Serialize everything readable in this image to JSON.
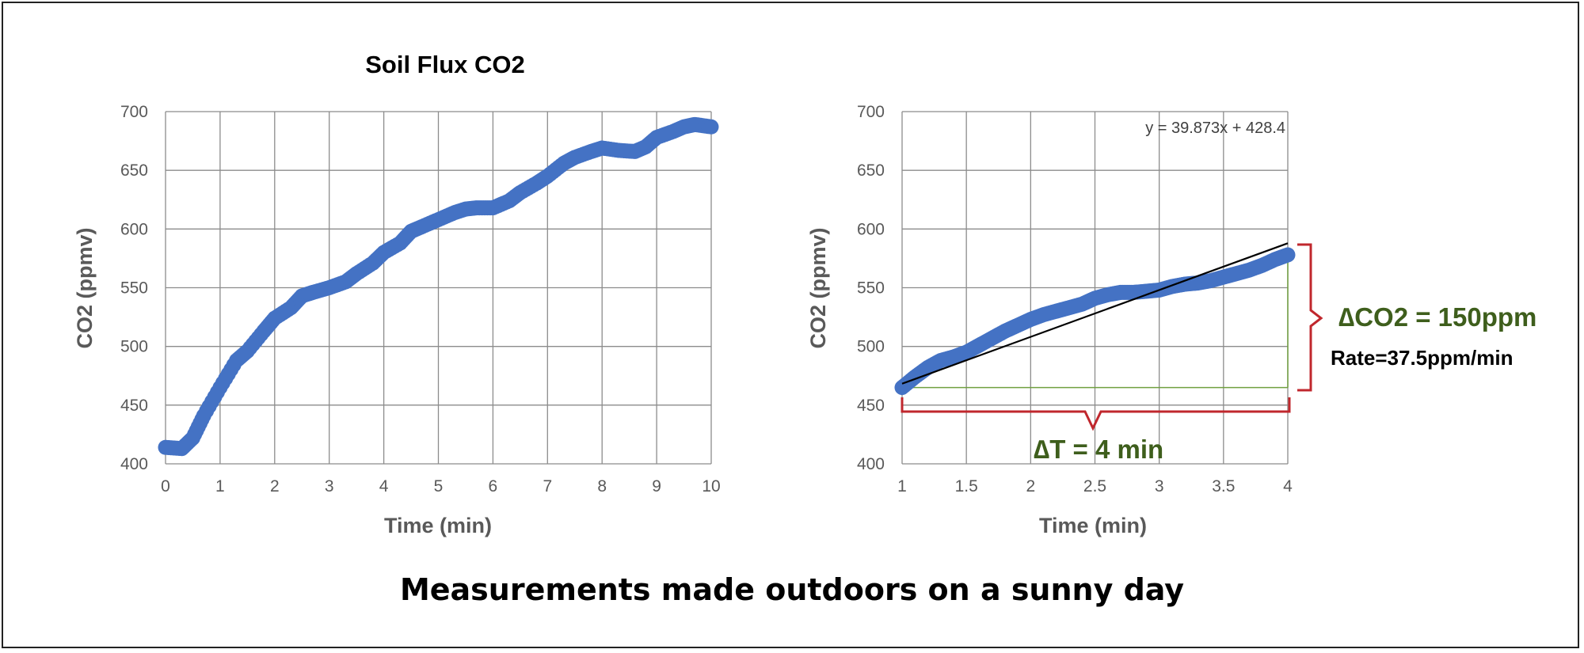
{
  "caption": "Measurements made outdoors on a sunny day",
  "chart_data": [
    {
      "type": "scatter",
      "title": "Soil Flux CO2",
      "xlabel": "Time (min)",
      "ylabel": "CO2 (ppmv)",
      "xlim": [
        0,
        10
      ],
      "ylim": [
        400,
        700
      ],
      "xticks": [
        "0",
        "1",
        "2",
        "3",
        "4",
        "5",
        "6",
        "7",
        "8",
        "9",
        "10"
      ],
      "yticks": [
        "400",
        "450",
        "500",
        "550",
        "600",
        "650",
        "700"
      ],
      "grid": true,
      "series_color": "#4472C4",
      "points": {
        "x": [
          0.0,
          0.3,
          0.5,
          0.7,
          1.0,
          1.3,
          1.5,
          1.8,
          2.0,
          2.3,
          2.5,
          2.7,
          3.0,
          3.3,
          3.5,
          3.8,
          4.0,
          4.3,
          4.5,
          4.7,
          5.0,
          5.3,
          5.5,
          5.7,
          6.0,
          6.3,
          6.5,
          6.8,
          7.0,
          7.3,
          7.5,
          7.8,
          8.0,
          8.3,
          8.6,
          8.8,
          9.0,
          9.3,
          9.5,
          9.7,
          10.0
        ],
        "y": [
          414,
          413,
          422,
          441,
          465,
          488,
          496,
          513,
          524,
          533,
          543,
          546,
          550,
          555,
          562,
          571,
          580,
          588,
          598,
          602,
          608,
          614,
          617,
          618,
          618,
          624,
          631,
          639,
          645,
          656,
          661,
          666,
          669,
          667,
          666,
          670,
          678,
          683,
          687,
          689,
          687
        ]
      }
    },
    {
      "type": "scatter",
      "title": "",
      "xlabel": "Time (min)",
      "ylabel": "CO2 (ppmv)",
      "xlim": [
        1,
        4
      ],
      "ylim": [
        400,
        700
      ],
      "xticks": [
        "1",
        "1.5",
        "2",
        "2.5",
        "3",
        "3.5",
        "4"
      ],
      "yticks": [
        "400",
        "450",
        "500",
        "550",
        "600",
        "650",
        "700"
      ],
      "grid": true,
      "series_color": "#4472C4",
      "trendline": {
        "equation": "y = 39.873x + 428.4",
        "slope": 39.873,
        "intercept": 428.4,
        "color": "#000000"
      },
      "points": {
        "x": [
          1.0,
          1.1,
          1.2,
          1.3,
          1.4,
          1.5,
          1.6,
          1.7,
          1.8,
          1.9,
          2.0,
          2.1,
          2.2,
          2.3,
          2.4,
          2.5,
          2.6,
          2.7,
          2.8,
          2.9,
          3.0,
          3.1,
          3.2,
          3.3,
          3.4,
          3.5,
          3.6,
          3.7,
          3.8,
          3.9,
          4.0
        ],
        "y": [
          465,
          474,
          482,
          488,
          491,
          495,
          501,
          507,
          513,
          518,
          523,
          527,
          530,
          533,
          536,
          541,
          544,
          546,
          546,
          547,
          548,
          551,
          553,
          554,
          556,
          559,
          562,
          565,
          569,
          574,
          578
        ]
      },
      "annotations": {
        "delta_co2": "∆CO2 = 150ppm",
        "rate": "Rate=37.5ppm/min",
        "delta_t": "∆T = 4 min"
      }
    }
  ]
}
